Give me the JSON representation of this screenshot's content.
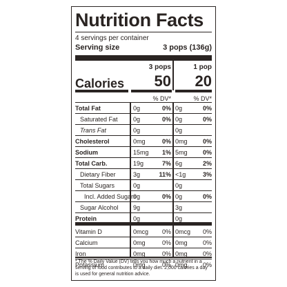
{
  "title": "Nutrition Facts",
  "servings_per_container": "4 servings per container",
  "serving_size_label": "Serving size",
  "serving_size_value": "3 pops (136g)",
  "col1_header": "3 pops",
  "col2_header": "1 pop",
  "calories_label": "Calories",
  "calories_col1": "50",
  "calories_col2": "20",
  "dv_header_col1": "% DV*",
  "dv_header_col2": "% DV*",
  "rows": [
    {
      "name": "Total Fat",
      "q1": "0g",
      "d1": "0%",
      "q2": "0g",
      "d2": "0%"
    },
    {
      "name": "Saturated Fat",
      "q1": "0g",
      "d1": "0%",
      "q2": "0g",
      "d2": "0%"
    },
    {
      "name": "Trans Fat",
      "q1": "0g",
      "d1": "",
      "q2": "0g",
      "d2": ""
    },
    {
      "name": "Cholesterol",
      "q1": "0mg",
      "d1": "0%",
      "q2": "0mg",
      "d2": "0%"
    },
    {
      "name": "Sodium",
      "q1": "15mg",
      "d1": "1%",
      "q2": "5mg",
      "d2": "0%"
    },
    {
      "name": "Total Carb.",
      "q1": "19g",
      "d1": "7%",
      "q2": "6g",
      "d2": "2%"
    },
    {
      "name": "Dietary Fiber",
      "q1": "3g",
      "d1": "11%",
      "q2": "<1g",
      "d2": "3%"
    },
    {
      "name": "Total Sugars",
      "q1": "0g",
      "d1": "",
      "q2": "0g",
      "d2": ""
    },
    {
      "name": "Incl. Added Sugars",
      "q1": "0g",
      "d1": "0%",
      "q2": "0g",
      "d2": "0%"
    },
    {
      "name": "Sugar Alcohol",
      "q1": "9g",
      "d1": "",
      "q2": "3g",
      "d2": ""
    },
    {
      "name": "Protein",
      "q1": "0g",
      "d1": "",
      "q2": "0g",
      "d2": ""
    },
    {
      "name": "Vitamin D",
      "q1": "0mcg",
      "d1": "0%",
      "q2": "0mcg",
      "d2": "0%"
    },
    {
      "name": "Calcium",
      "q1": "0mg",
      "d1": "0%",
      "q2": "0mg",
      "d2": "0%"
    },
    {
      "name": "Iron",
      "q1": "0mg",
      "d1": "0%",
      "q2": "0mg",
      "d2": "0%"
    },
    {
      "name": "Potassium",
      "q1": "0mg",
      "d1": "0%",
      "q2": "0mg",
      "d2": "0%"
    }
  ],
  "footnote": "* The % Daily Value (DV) tells you how much a nutrient in a serving of food contributes to a daily diet. 2,000 calories a day is used for general nutrition advice."
}
